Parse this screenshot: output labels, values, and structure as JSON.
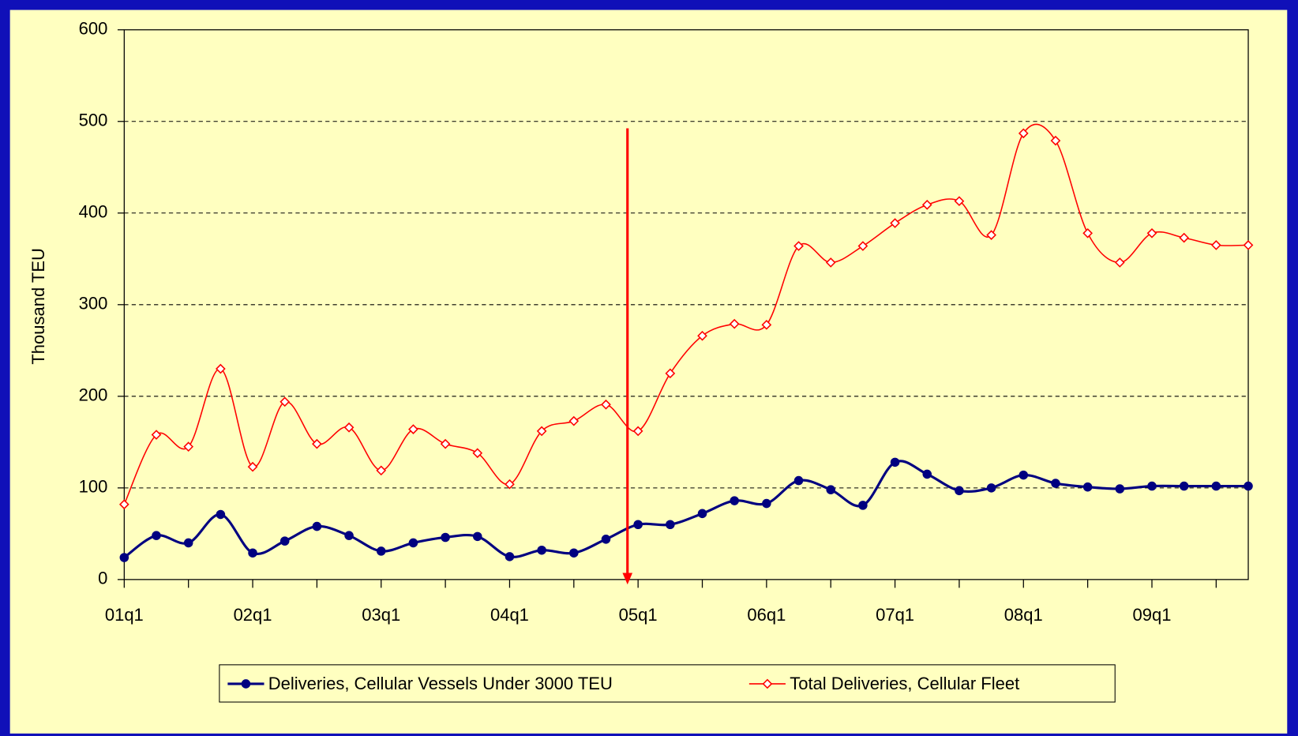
{
  "chart_data": {
    "type": "line",
    "y_label": "Thousand TEU",
    "categories": [
      "01q1",
      null,
      null,
      null,
      "02q1",
      null,
      null,
      null,
      "03q1",
      null,
      null,
      null,
      "04q1",
      null,
      null,
      null,
      "05q1",
      null,
      null,
      null,
      "06q1",
      null,
      null,
      null,
      "07q1",
      null,
      null,
      null,
      "08q1",
      null,
      null,
      null,
      "09q1",
      null,
      null,
      null
    ],
    "series": [
      {
        "name": "Deliveries, Cellular Vessels Under 3000 TEU",
        "color": "#000080",
        "marker": "circle",
        "values": [
          24,
          48,
          40,
          71,
          29,
          42,
          58,
          48,
          31,
          40,
          46,
          47,
          25,
          32,
          29,
          44,
          60,
          60,
          72,
          86,
          83,
          108,
          98,
          81,
          128,
          115,
          97,
          100,
          114,
          105,
          101,
          99,
          102,
          102,
          102,
          102
        ]
      },
      {
        "name": "Total Deliveries, Cellular Fleet",
        "color": "#ff0000",
        "marker": "diamond",
        "values": [
          82,
          158,
          145,
          230,
          123,
          194,
          148,
          166,
          119,
          164,
          148,
          138,
          104,
          162,
          173,
          191,
          162,
          225,
          266,
          279,
          278,
          364,
          346,
          364,
          389,
          409,
          413,
          376,
          487,
          479,
          378,
          346,
          378,
          373,
          365,
          365
        ]
      }
    ],
    "ylim": [
      0,
      600
    ],
    "yticks": [
      0,
      100,
      200,
      300,
      400,
      500,
      600
    ],
    "grid": true,
    "legend": "bottom"
  }
}
